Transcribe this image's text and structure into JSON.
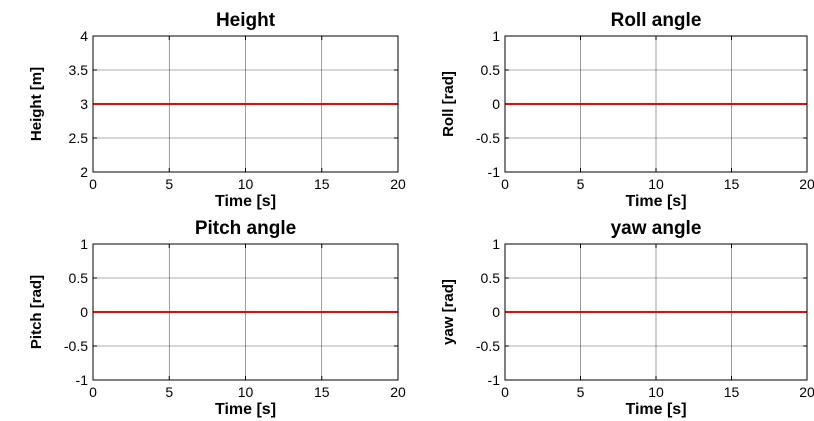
{
  "chart_data": [
    {
      "type": "line",
      "title": "Height",
      "xlabel": "Time [s]",
      "ylabel": "Height [m]",
      "xlim": [
        0,
        20
      ],
      "ylim": [
        2,
        4
      ],
      "xticks": [
        "0",
        "5",
        "10",
        "15",
        "20"
      ],
      "yticks": [
        "2",
        "2.5",
        "3",
        "3.5",
        "4"
      ],
      "grid": true,
      "series": [
        {
          "color": "#ff0000",
          "x": [
            0,
            20
          ],
          "y": [
            3,
            3
          ]
        }
      ]
    },
    {
      "type": "line",
      "title": "Roll angle",
      "xlabel": "Time [s]",
      "ylabel": "Roll [rad]",
      "xlim": [
        0,
        20
      ],
      "ylim": [
        -1,
        1
      ],
      "xticks": [
        "0",
        "5",
        "10",
        "15",
        "20"
      ],
      "yticks": [
        "-1",
        "-0.5",
        "0",
        "0.5",
        "1"
      ],
      "grid": true,
      "series": [
        {
          "color": "#ff0000",
          "x": [
            0,
            20
          ],
          "y": [
            0,
            0
          ]
        }
      ]
    },
    {
      "type": "line",
      "title": "Pitch angle",
      "xlabel": "Time [s]",
      "ylabel": "Pitch [rad]",
      "xlim": [
        0,
        20
      ],
      "ylim": [
        -1,
        1
      ],
      "xticks": [
        "0",
        "5",
        "10",
        "15",
        "20"
      ],
      "yticks": [
        "-1",
        "-0.5",
        "0",
        "0.5",
        "1"
      ],
      "grid": true,
      "series": [
        {
          "color": "#ff0000",
          "x": [
            0,
            20
          ],
          "y": [
            0,
            0
          ]
        }
      ]
    },
    {
      "type": "line",
      "title": "yaw angle",
      "xlabel": "Time [s]",
      "ylabel": "yaw [rad]",
      "xlim": [
        0,
        20
      ],
      "ylim": [
        -1,
        1
      ],
      "xticks": [
        "0",
        "5",
        "10",
        "15",
        "20"
      ],
      "yticks": [
        "-1",
        "-0.5",
        "0",
        "0.5",
        "1"
      ],
      "grid": true,
      "series": [
        {
          "color": "#ff0000",
          "x": [
            0,
            20
          ],
          "y": [
            0,
            0
          ]
        }
      ]
    }
  ]
}
